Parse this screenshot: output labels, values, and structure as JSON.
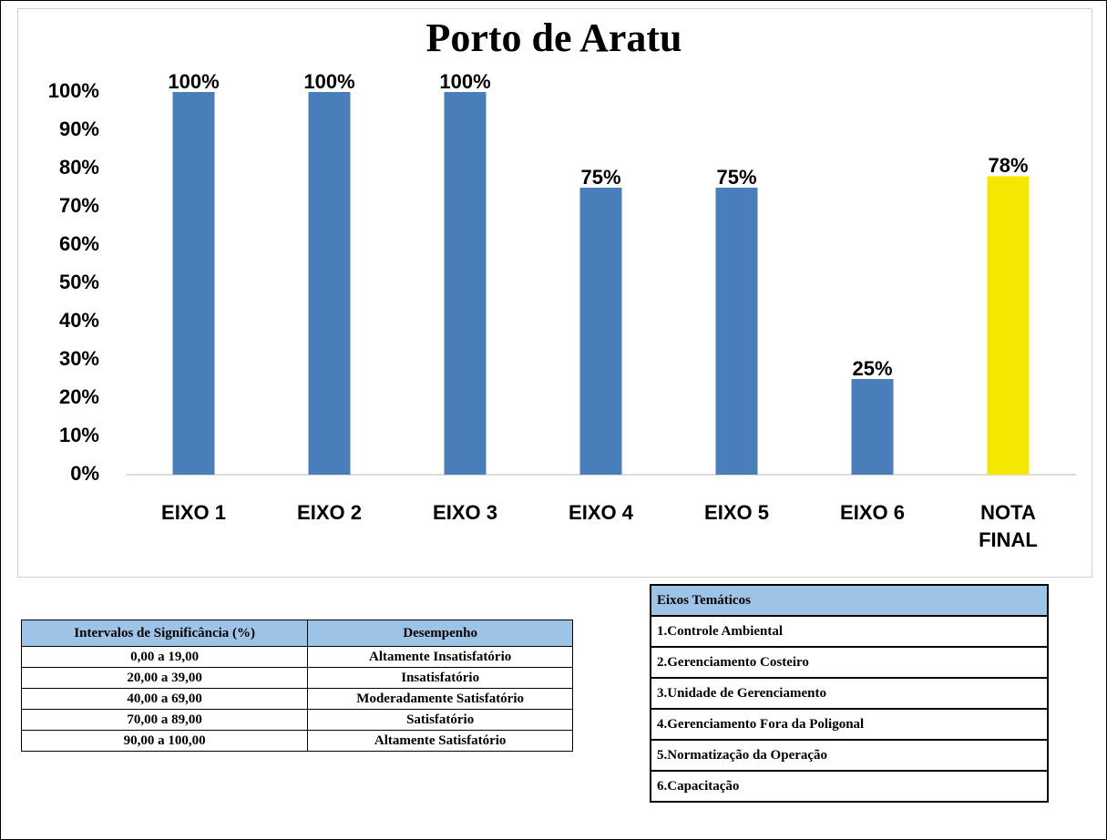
{
  "chart_data": {
    "type": "bar",
    "title": "Porto de Aratu",
    "categories": [
      "EIXO 1",
      "EIXO 2",
      "EIXO 3",
      "EIXO 4",
      "EIXO 5",
      "EIXO 6",
      "NOTA FINAL"
    ],
    "values": [
      100,
      100,
      100,
      75,
      75,
      25,
      78
    ],
    "value_labels": [
      "100%",
      "100%",
      "100%",
      "75%",
      "75%",
      "25%",
      "78%"
    ],
    "colors": [
      "#4a7ebb",
      "#4a7ebb",
      "#4a7ebb",
      "#4a7ebb",
      "#4a7ebb",
      "#4a7ebb",
      "#f5e800"
    ],
    "ylim": [
      0,
      100
    ],
    "yticks": [
      {
        "value": 0,
        "label": "0%"
      },
      {
        "value": 10,
        "label": "10%"
      },
      {
        "value": 20,
        "label": "20%"
      },
      {
        "value": 30,
        "label": "30%"
      },
      {
        "value": 40,
        "label": "40%"
      },
      {
        "value": 50,
        "label": "50%"
      },
      {
        "value": 60,
        "label": "60%"
      },
      {
        "value": 70,
        "label": "70%"
      },
      {
        "value": 80,
        "label": "80%"
      },
      {
        "value": 90,
        "label": "90%"
      },
      {
        "value": 100,
        "label": "100%"
      }
    ],
    "grid": false
  },
  "significance_table": {
    "headers": [
      "Intervalos de Significância (%)",
      "Desempenho"
    ],
    "rows": [
      [
        "0,00 a 19,00",
        "Altamente Insatisfatório"
      ],
      [
        "20,00 a 39,00",
        "Insatisfatório"
      ],
      [
        "40,00 a 69,00",
        "Moderadamente Satisfatório"
      ],
      [
        "70,00 a 89,00",
        "Satisfatório"
      ],
      [
        "90,00 a 100,00",
        "Altamente Satisfatório"
      ]
    ]
  },
  "axes_table": {
    "header": "Eixos Temáticos",
    "rows": [
      "1.Controle Ambiental",
      "2.Gerenciamento Costeiro",
      "3.Unidade de Gerenciamento",
      "4.Gerenciamento Fora da Poligonal",
      "5.Normatização da Operação",
      "6.Capacitação"
    ]
  }
}
